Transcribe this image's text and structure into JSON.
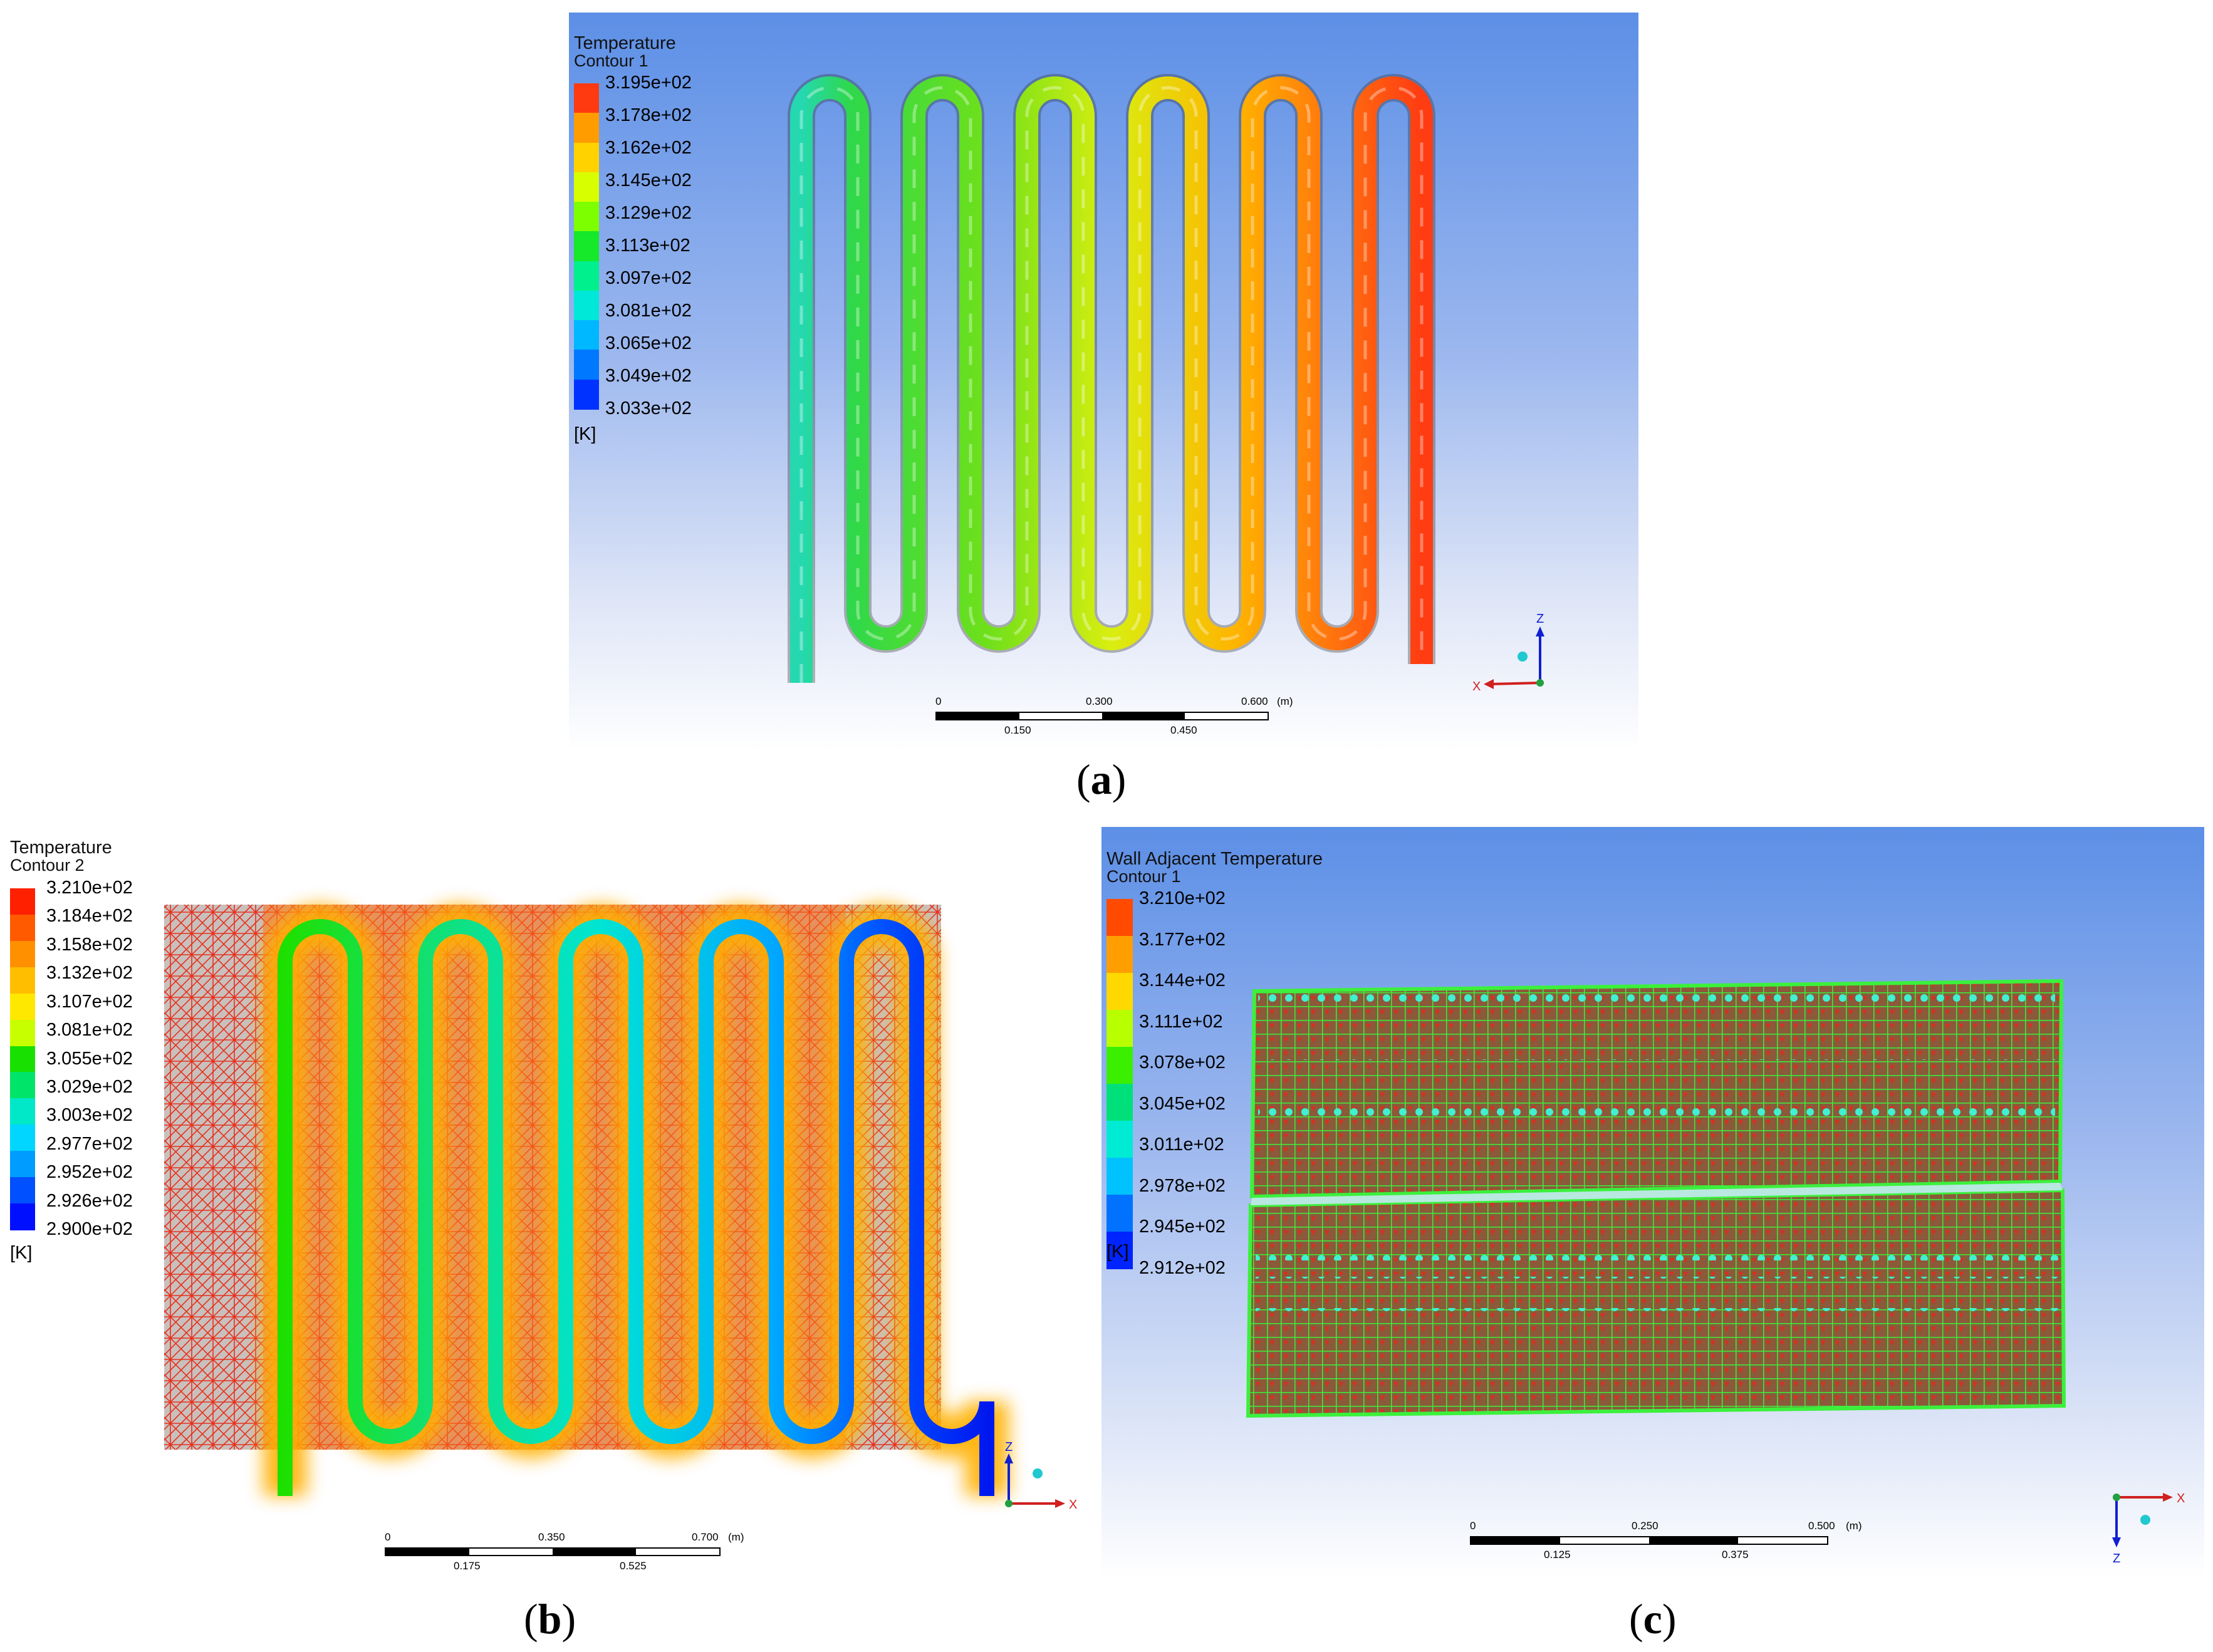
{
  "panel_a": {
    "legend": {
      "title": "Temperature",
      "subtitle": "Contour 1",
      "ticks": [
        "3.195e+02",
        "3.178e+02",
        "3.162e+02",
        "3.145e+02",
        "3.129e+02",
        "3.113e+02",
        "3.097e+02",
        "3.081e+02",
        "3.065e+02",
        "3.049e+02",
        "3.033e+02"
      ],
      "colors": [
        "#ff3a10",
        "#ff9c00",
        "#ffd200",
        "#d8ff00",
        "#7eff00",
        "#16e82a",
        "#00f08e",
        "#00e8d8",
        "#00b8ff",
        "#0078ff",
        "#0032ff"
      ],
      "unit": "[K]"
    },
    "scale": {
      "ticks_top": [
        "0",
        "0.300",
        "0.600"
      ],
      "ticks_bottom": [
        "0.150",
        "0.450"
      ],
      "unit": "(m)"
    },
    "axes": {
      "vertical": "Z",
      "horizontal": "X"
    },
    "caption_label": "a"
  },
  "panel_b": {
    "legend": {
      "title": "Temperature",
      "subtitle": "Contour 2",
      "ticks": [
        "3.210e+02",
        "3.184e+02",
        "3.158e+02",
        "3.132e+02",
        "3.107e+02",
        "3.081e+02",
        "3.055e+02",
        "3.029e+02",
        "3.003e+02",
        "2.977e+02",
        "2.952e+02",
        "2.926e+02",
        "2.900e+02"
      ],
      "colors": [
        "#ff2000",
        "#ff5a00",
        "#ff9000",
        "#ffbe00",
        "#ffe800",
        "#c8ff00",
        "#18e000",
        "#00e46a",
        "#00e8c8",
        "#00d6ff",
        "#009cff",
        "#0050ff",
        "#0010ff"
      ],
      "unit": "[K]"
    },
    "scale": {
      "ticks_top": [
        "0",
        "0.350",
        "0.700"
      ],
      "ticks_bottom": [
        "0.175",
        "0.525"
      ],
      "unit": "(m)"
    },
    "axes": {
      "vertical": "Z",
      "horizontal": "X"
    },
    "caption_label": "b"
  },
  "panel_c": {
    "legend": {
      "title": "Wall Adjacent Temperature",
      "subtitle": "Contour 1",
      "ticks": [
        "3.210e+02",
        "3.177e+02",
        "3.144e+02",
        "3.111e+02",
        "3.078e+02",
        "3.045e+02",
        "3.011e+02",
        "2.978e+02",
        "2.945e+02",
        "2.912e+02"
      ],
      "colors": [
        "#ff4a00",
        "#ff9e00",
        "#ffd800",
        "#b8ff00",
        "#3aef00",
        "#00e07a",
        "#00ebd4",
        "#00c2ff",
        "#0072ff",
        "#0024ff"
      ],
      "unit": "[K]"
    },
    "scale": {
      "ticks_top": [
        "0",
        "0.250",
        "0.500"
      ],
      "ticks_bottom": [
        "0.125",
        "0.375"
      ],
      "unit": "(m)"
    },
    "axes": {
      "vertical": "Z",
      "horizontal": "X"
    },
    "caption_label": "c"
  }
}
